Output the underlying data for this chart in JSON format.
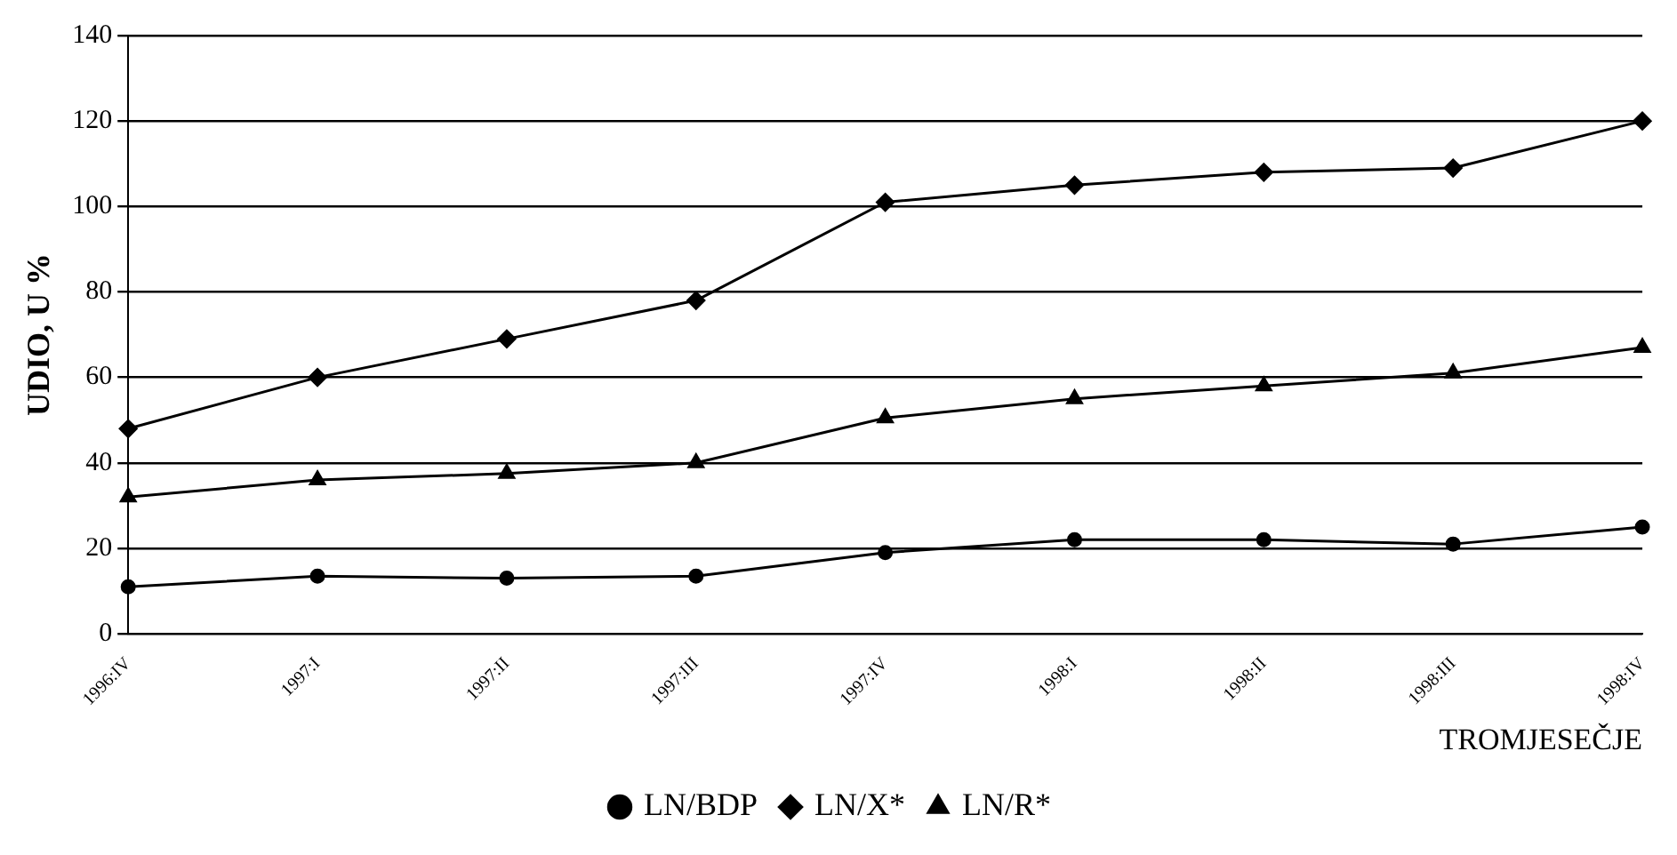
{
  "chart_data": {
    "type": "line",
    "xlabel": "TROMJESEČJE",
    "ylabel": "UDIO, U %",
    "categories": [
      "1996:IV",
      "1997:I",
      "1997:II",
      "1997:III",
      "1997:IV",
      "1998:I",
      "1998:II",
      "1998:III",
      "1998:IV"
    ],
    "series": [
      {
        "name": "LN/BDP",
        "color": "#000000",
        "marker": "circle",
        "values": [
          11,
          13.5,
          13,
          13.5,
          19,
          22,
          22,
          21,
          25
        ]
      },
      {
        "name": "LN/X*",
        "color": "#000000",
        "marker": "diamond",
        "values": [
          48,
          60,
          69,
          78,
          101,
          105,
          108,
          109,
          120
        ]
      },
      {
        "name": "LN/R*",
        "color": "#000000",
        "marker": "triangle",
        "values": [
          32,
          36,
          37.5,
          40,
          50.5,
          55,
          58,
          61,
          67
        ]
      }
    ],
    "ylim": [
      0,
      140
    ],
    "yticks": [
      0,
      20,
      40,
      60,
      80,
      100,
      120,
      140
    ],
    "grid": "y",
    "legend": "bottom",
    "line_style": "solid"
  }
}
